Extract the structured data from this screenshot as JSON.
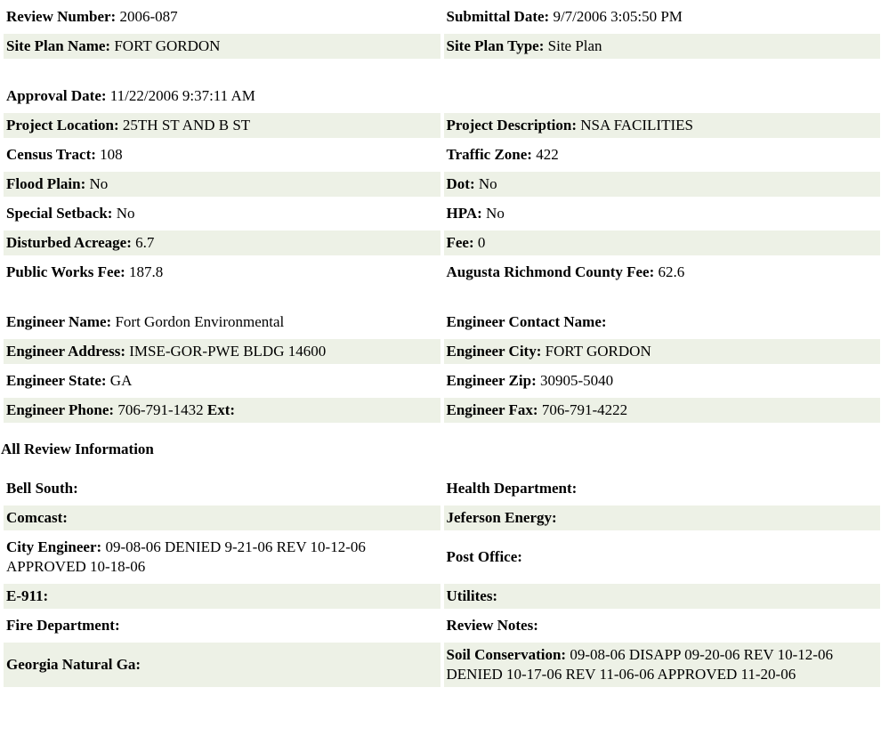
{
  "sections": [
    {
      "rows": [
        [
          {
            "label": "Review Number:",
            "value": "2006-087"
          },
          {
            "label": "Submittal Date:",
            "value": "9/7/2006 3:05:50 PM"
          }
        ],
        [
          {
            "label": "Site Plan Name:",
            "value": "FORT GORDON"
          },
          {
            "label": "Site Plan Type:",
            "value": "Site Plan"
          }
        ]
      ]
    },
    {
      "rows": [
        [
          {
            "label": "Approval Date:",
            "value": "11/22/2006 9:37:11 AM"
          },
          null
        ],
        [
          {
            "label": "Project Location:",
            "value": "25TH ST AND B ST"
          },
          {
            "label": "Project Description:",
            "value": "NSA FACILITIES"
          }
        ],
        [
          {
            "label": "Census Tract:",
            "value": "108"
          },
          {
            "label": "Traffic Zone:",
            "value": "422"
          }
        ],
        [
          {
            "label": "Flood Plain:",
            "value": "No"
          },
          {
            "label": "Dot:",
            "value": "No"
          }
        ],
        [
          {
            "label": "Special Setback:",
            "value": "No"
          },
          {
            "label": "HPA:",
            "value": "No"
          }
        ],
        [
          {
            "label": "Disturbed Acreage:",
            "value": "6.7"
          },
          {
            "label": "Fee:",
            "value": "0"
          }
        ],
        [
          {
            "label": "Public Works Fee:",
            "value": "187.8"
          },
          {
            "label": "Augusta Richmond County Fee:",
            "value": "62.6"
          }
        ]
      ]
    },
    {
      "rows": [
        [
          {
            "label": "Engineer Name:",
            "value": "Fort Gordon Environmental"
          },
          {
            "label": "Engineer Contact Name:",
            "value": ""
          }
        ],
        [
          {
            "label": "Engineer Address:",
            "value": "IMSE-GOR-PWE BLDG 14600"
          },
          {
            "label": "Engineer City:",
            "value": "FORT GORDON"
          }
        ],
        [
          {
            "label": "Engineer State:",
            "value": "GA"
          },
          {
            "label": "Engineer Zip:",
            "value": "30905-5040"
          }
        ],
        [
          {
            "label": "Engineer Phone:",
            "value": "706-791-1432",
            "extra": "Ext:"
          },
          {
            "label": "Engineer Fax:",
            "value": "706-791-4222"
          }
        ]
      ]
    },
    {
      "heading": "All Review Information",
      "rows": [
        [
          {
            "label": "Bell South:",
            "value": ""
          },
          {
            "label": "Health Department:",
            "value": ""
          }
        ],
        [
          {
            "label": "Comcast:",
            "value": ""
          },
          {
            "label": "Jeferson Energy:",
            "value": ""
          }
        ],
        [
          {
            "label": "City Engineer:",
            "value": "09-08-06 DENIED 9-21-06 REV 10-12-06 APPROVED 10-18-06"
          },
          {
            "label": "Post Office:",
            "value": ""
          }
        ],
        [
          {
            "label": "E-911:",
            "value": ""
          },
          {
            "label": "Utilites:",
            "value": ""
          }
        ],
        [
          {
            "label": "Fire Department:",
            "value": ""
          },
          {
            "label": "Review Notes:",
            "value": ""
          }
        ],
        [
          {
            "label": "Georgia Natural Ga:",
            "value": ""
          },
          {
            "label": "Soil Conservation:",
            "value": "09-08-06 DISAPP 09-20-06 REV 10-12-06 DENIED 10-17-06 REV 11-06-06 APPROVED 11-20-06"
          }
        ]
      ]
    }
  ],
  "colors": {
    "alt_row": "#edf1e6"
  }
}
